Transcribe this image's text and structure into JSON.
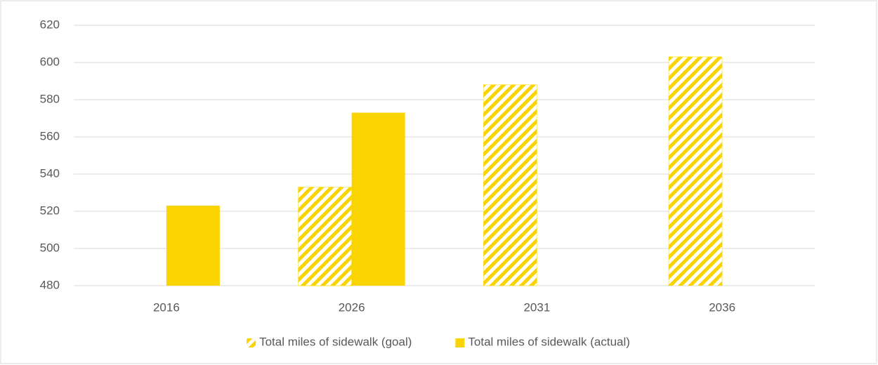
{
  "chart_data": {
    "type": "bar",
    "categories": [
      "2016",
      "2026",
      "2031",
      "2036"
    ],
    "series": [
      {
        "name": "Total miles of sidewalk (goal)",
        "color": "#f9d400",
        "pattern": "hatch",
        "values": [
          null,
          533,
          588,
          603
        ]
      },
      {
        "name": "Total miles of sidewalk (actual)",
        "color": "#f9d400",
        "pattern": "solid",
        "values": [
          523,
          573,
          null,
          null
        ]
      }
    ],
    "ylim": [
      480,
      620
    ],
    "yticks": [
      480,
      500,
      520,
      540,
      560,
      580,
      600,
      620
    ],
    "grid": true,
    "legend": "bottom"
  }
}
